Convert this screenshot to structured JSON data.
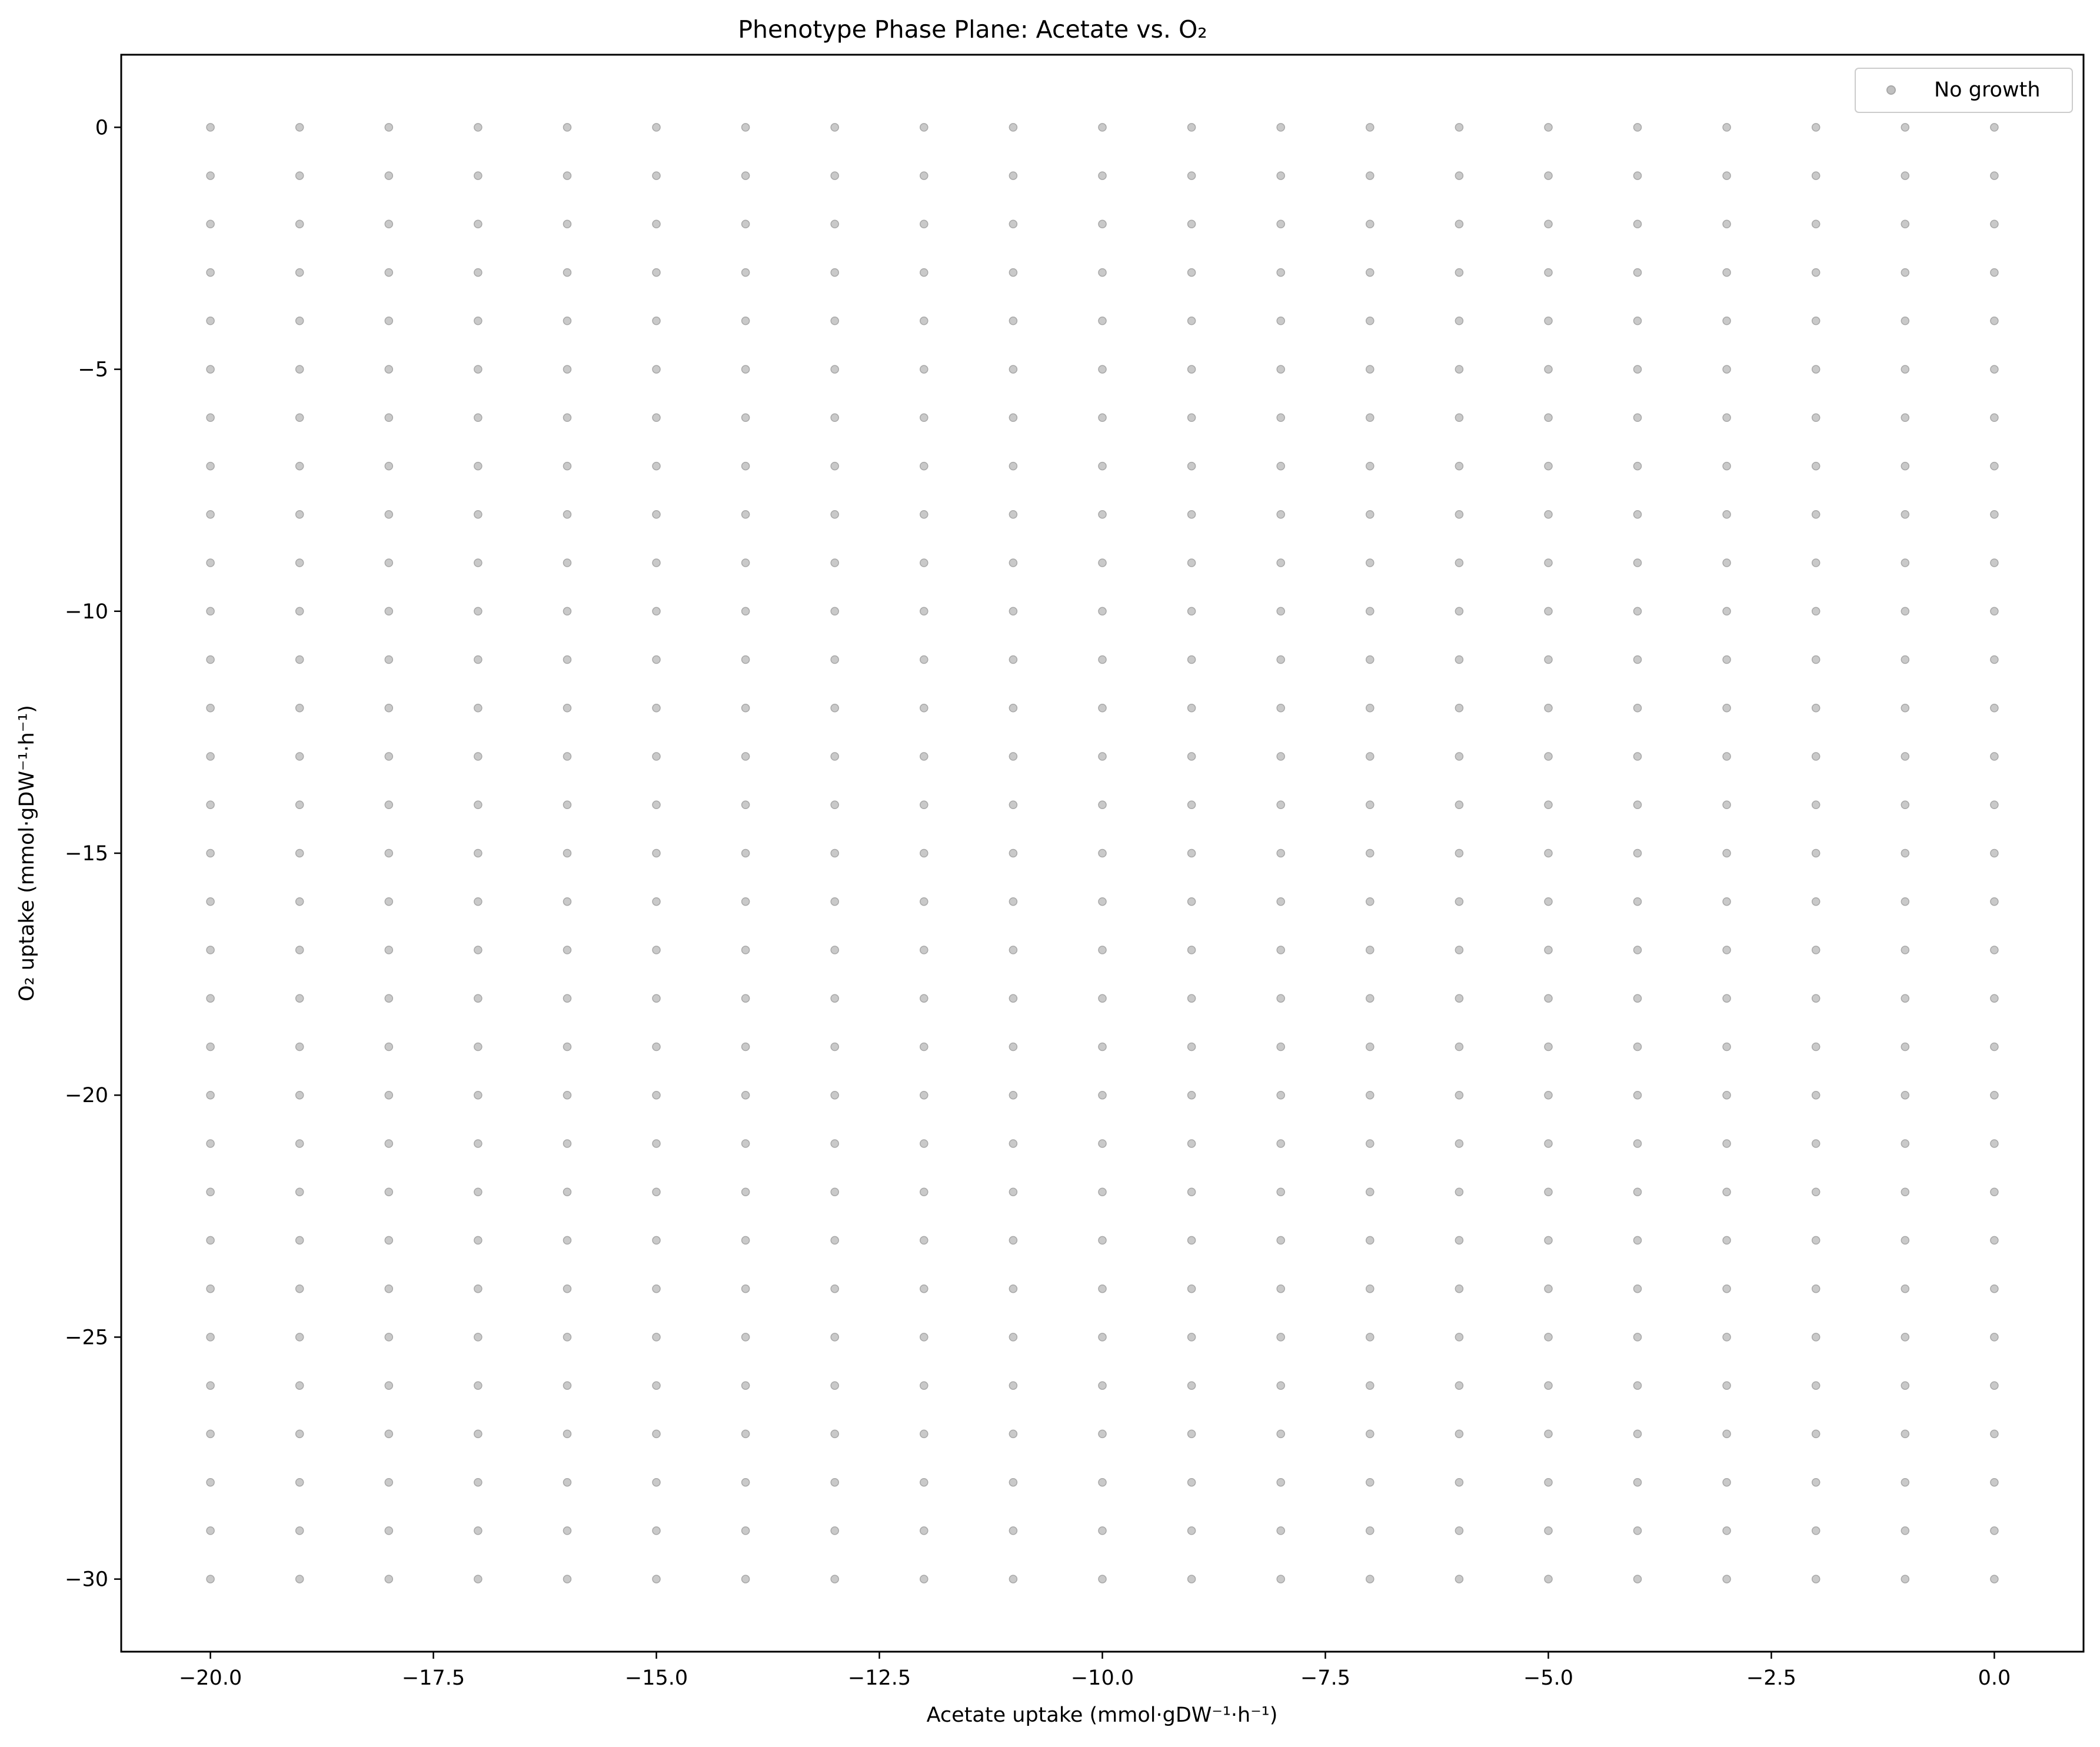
{
  "chart_data": {
    "type": "scatter",
    "title": "Phenotype Phase Plane: Acetate vs. O₂",
    "xlabel": "Acetate uptake (mmol·gDW⁻¹·h⁻¹)",
    "ylabel": "O₂ uptake (mmol·gDW⁻¹·h⁻¹)",
    "xlim": [
      -21,
      1
    ],
    "ylim": [
      -31.5,
      1.5
    ],
    "x_ticks": [
      -20.0,
      -17.5,
      -15.0,
      -12.5,
      -10.0,
      -7.5,
      -5.0,
      -2.5,
      0.0
    ],
    "x_tick_labels": [
      "−20.0",
      "−17.5",
      "−15.0",
      "−12.5",
      "−10.0",
      "−7.5",
      "−5.0",
      "−2.5",
      "0.0"
    ],
    "y_ticks": [
      0,
      -5,
      -10,
      -15,
      -20,
      -25,
      -30
    ],
    "y_tick_labels": [
      "0",
      "−5",
      "−10",
      "−15",
      "−20",
      "−25",
      "−30"
    ],
    "grid": false,
    "legend_position": "top-right",
    "series": [
      {
        "name": "No growth",
        "color": "#c0c0c0",
        "grid_x": {
          "start": -20,
          "end": 0,
          "step": 1
        },
        "grid_y": {
          "start": 0,
          "end": -30,
          "step": -1
        }
      }
    ]
  }
}
